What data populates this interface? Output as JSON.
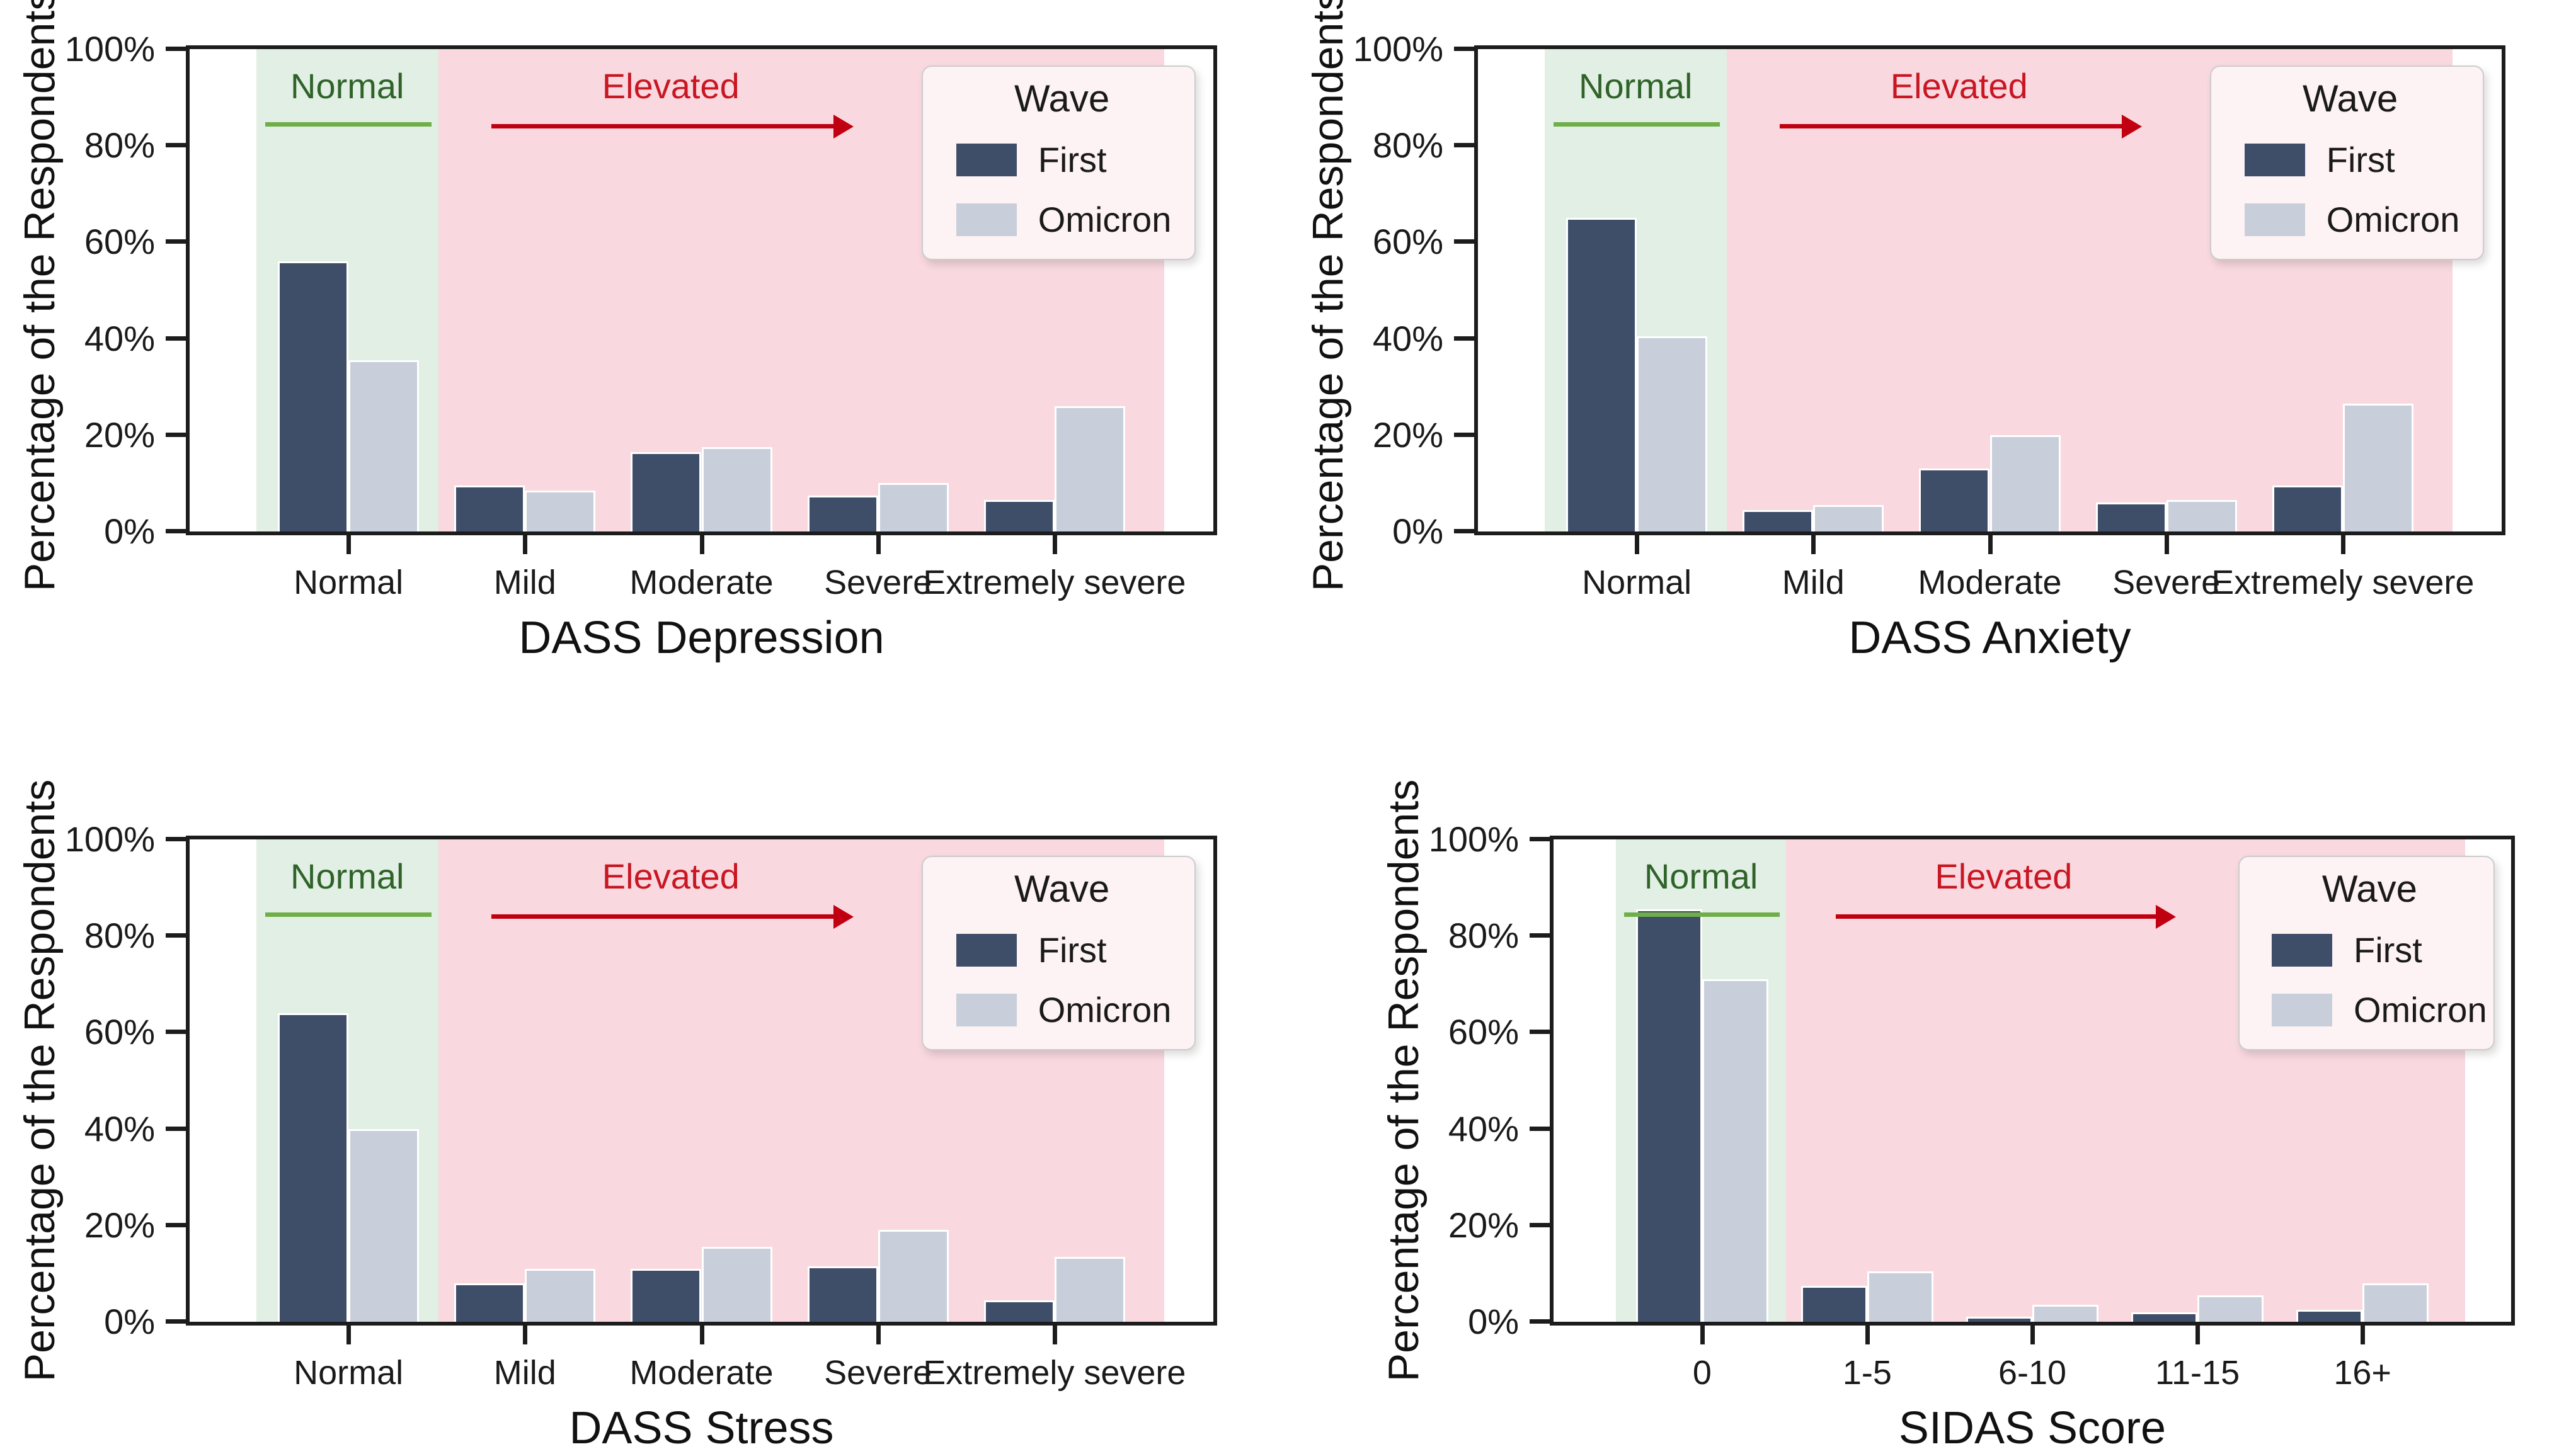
{
  "figure": {
    "ylabel": "Percentage of the Respondents",
    "yticks": [
      "0%",
      "20%",
      "40%",
      "60%",
      "80%",
      "100%"
    ],
    "legend": {
      "title": "Wave",
      "position": "upper right",
      "items": [
        {
          "label": "First",
          "color": "#3e4d68"
        },
        {
          "label": "Omicron",
          "color": "#c8cfda"
        }
      ]
    },
    "annotations": {
      "normal_label": "Normal",
      "elevated_label": "Elevated"
    },
    "colors": {
      "first_bar": "#3e4d68",
      "omicron_bar": "#c8cfda",
      "normal_band": "#e2efe4",
      "elevated_band": "#f9d8df",
      "normal_text": "#2f6329",
      "normal_line": "#6fae4a",
      "elevated_text": "#c81622",
      "elevated_arrow": "#c00010",
      "legend_bg": "#fdf2f4",
      "legend_border": "#cccccc",
      "axis": "#1c1c1c"
    }
  },
  "chart_data": [
    {
      "type": "bar",
      "title": "",
      "xlabel": "DASS Depression",
      "ylabel": "Percentage of the Respondents",
      "ylim": [
        0,
        100
      ],
      "grid": false,
      "categories": [
        "Normal",
        "Mild",
        "Moderate",
        "Severe",
        "Extremely severe"
      ],
      "series": [
        {
          "name": "First",
          "values": [
            56,
            9.5,
            16.5,
            7.5,
            6.5
          ]
        },
        {
          "name": "Omicron",
          "values": [
            35.5,
            8.5,
            17.5,
            10,
            26
          ]
        }
      ],
      "regions": {
        "normal": [
          "Normal"
        ],
        "elevated": [
          "Mild",
          "Moderate",
          "Severe",
          "Extremely severe"
        ]
      }
    },
    {
      "type": "bar",
      "title": "",
      "xlabel": "DASS Anxiety",
      "ylabel": "Percentage of the Respondents",
      "ylim": [
        0,
        100
      ],
      "grid": false,
      "categories": [
        "Normal",
        "Mild",
        "Moderate",
        "Severe",
        "Extremely severe"
      ],
      "series": [
        {
          "name": "First",
          "values": [
            65,
            4.5,
            13,
            6,
            9.5
          ]
        },
        {
          "name": "Omicron",
          "values": [
            40.5,
            5.5,
            20,
            6.5,
            26.5
          ]
        }
      ],
      "regions": {
        "normal": [
          "Normal"
        ],
        "elevated": [
          "Mild",
          "Moderate",
          "Severe",
          "Extremely severe"
        ]
      }
    },
    {
      "type": "bar",
      "title": "",
      "xlabel": "DASS Stress",
      "ylabel": "Percentage of the Respondents",
      "ylim": [
        0,
        100
      ],
      "grid": false,
      "categories": [
        "Normal",
        "Mild",
        "Moderate",
        "Severe",
        "Extremely severe"
      ],
      "series": [
        {
          "name": "First",
          "values": [
            64,
            8,
            11,
            11.5,
            4.5
          ]
        },
        {
          "name": "Omicron",
          "values": [
            40,
            11,
            15.5,
            19,
            13.5
          ]
        }
      ],
      "regions": {
        "normal": [
          "Normal"
        ],
        "elevated": [
          "Mild",
          "Moderate",
          "Severe",
          "Extremely severe"
        ]
      }
    },
    {
      "type": "bar",
      "title": "",
      "xlabel": "SIDAS Score",
      "ylabel": "Percentage of the Respondents",
      "ylim": [
        0,
        100
      ],
      "grid": false,
      "categories": [
        "0",
        "1-5",
        "6-10",
        "11-15",
        "16+"
      ],
      "series": [
        {
          "name": "First",
          "values": [
            85.5,
            7.5,
            1,
            2,
            2.5
          ]
        },
        {
          "name": "Omicron",
          "values": [
            71,
            10.5,
            3.5,
            5.5,
            8
          ]
        }
      ],
      "regions": {
        "normal": [
          "0"
        ],
        "elevated": [
          "1-5",
          "6-10",
          "11-15",
          "16+"
        ]
      }
    }
  ]
}
